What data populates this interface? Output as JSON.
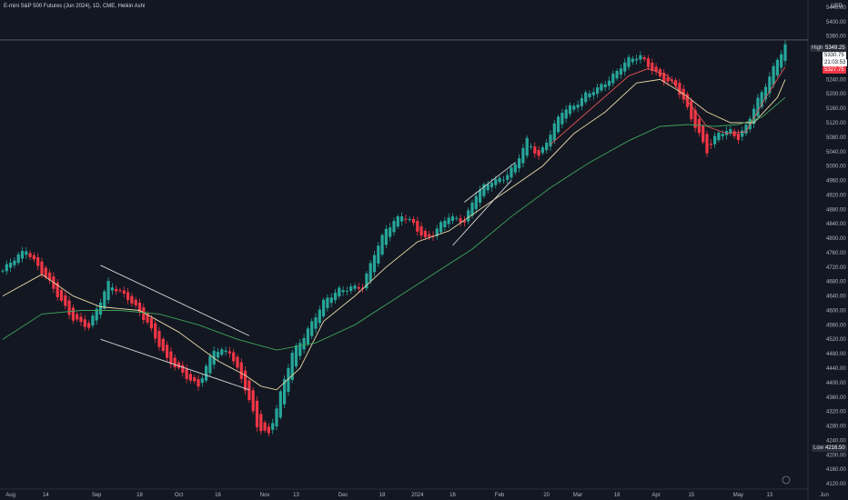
{
  "chart_title": "E-mini S&P 500 Futures (Jun 2024), 1D, CME, Heikin Ashi",
  "currency": "USD",
  "high_label": "High",
  "high_value": "5349.25",
  "low_label": "Low",
  "low_value": "4216.50",
  "last_price": "5330.75",
  "countdown": "21:03:53",
  "red_tag": "5327.75",
  "colors": {
    "background": "#131722",
    "up": "#26a69a",
    "down": "#f23645",
    "ma_fast": "#e05555",
    "ma_mid": "#e7d8a5",
    "ma_slow": "#3fa35b",
    "trendline": "#d8d8d8"
  },
  "chart_data": {
    "type": "candlestick",
    "title": "E-mini S&P 500 Futures (Jun 2024), 1D, CME, Heikin Ashi",
    "y_ticks": [
      5440,
      5400,
      5360,
      5320,
      5280,
      5240,
      5200,
      5160,
      5120,
      5080,
      5040,
      5000,
      4960,
      4920,
      4880,
      4840,
      4800,
      4760,
      4720,
      4680,
      4640,
      4600,
      4560,
      4520,
      4480,
      4440,
      4400,
      4360,
      4320,
      4280,
      4240,
      4200,
      4160,
      4120
    ],
    "ylim": [
      4105,
      5460
    ],
    "x_ticks": [
      {
        "label": "Aug",
        "index": 2
      },
      {
        "label": "14",
        "index": 11
      },
      {
        "label": "Sep",
        "index": 24
      },
      {
        "label": "18",
        "index": 35
      },
      {
        "label": "Oct",
        "index": 45
      },
      {
        "label": "16",
        "index": 55
      },
      {
        "label": "Nov",
        "index": 67
      },
      {
        "label": "13",
        "index": 75
      },
      {
        "label": "Dec",
        "index": 87
      },
      {
        "label": "18",
        "index": 97
      },
      {
        "label": "2024",
        "index": 106
      },
      {
        "label": "16",
        "index": 115
      },
      {
        "label": "Feb",
        "index": 127
      },
      {
        "label": "20",
        "index": 139
      },
      {
        "label": "Mar",
        "index": 147
      },
      {
        "label": "18",
        "index": 157
      },
      {
        "label": "Apr",
        "index": 167
      },
      {
        "label": "15",
        "index": 176
      },
      {
        "label": "May",
        "index": 188
      },
      {
        "label": "13",
        "index": 196
      },
      {
        "label": "Jun",
        "index": 210
      }
    ],
    "bars": 201,
    "anchors": [
      [
        0,
        4710
      ],
      [
        6,
        4770
      ],
      [
        8,
        4740
      ],
      [
        14,
        4640
      ],
      [
        18,
        4580
      ],
      [
        22,
        4550
      ],
      [
        27,
        4680
      ],
      [
        32,
        4630
      ],
      [
        37,
        4570
      ],
      [
        42,
        4460
      ],
      [
        47,
        4420
      ],
      [
        50,
        4390
      ],
      [
        54,
        4490
      ],
      [
        58,
        4490
      ],
      [
        62,
        4380
      ],
      [
        65,
        4280
      ],
      [
        68,
        4260
      ],
      [
        70,
        4330
      ],
      [
        74,
        4480
      ],
      [
        78,
        4550
      ],
      [
        82,
        4620
      ],
      [
        86,
        4660
      ],
      [
        89,
        4665
      ],
      [
        92,
        4660
      ],
      [
        95,
        4760
      ],
      [
        98,
        4830
      ],
      [
        102,
        4860
      ],
      [
        105,
        4840
      ],
      [
        108,
        4800
      ],
      [
        110,
        4810
      ],
      [
        114,
        4860
      ],
      [
        118,
        4850
      ],
      [
        121,
        4920
      ],
      [
        125,
        4960
      ],
      [
        128,
        4970
      ],
      [
        131,
        5000
      ],
      [
        134,
        5070
      ],
      [
        137,
        5030
      ],
      [
        140,
        5090
      ],
      [
        143,
        5150
      ],
      [
        146,
        5170
      ],
      [
        149,
        5200
      ],
      [
        152,
        5210
      ],
      [
        155,
        5240
      ],
      [
        158,
        5280
      ],
      [
        160,
        5295
      ],
      [
        163,
        5300
      ],
      [
        166,
        5270
      ],
      [
        169,
        5240
      ],
      [
        172,
        5220
      ],
      [
        175,
        5160
      ],
      [
        178,
        5090
      ],
      [
        180,
        5040
      ],
      [
        183,
        5090
      ],
      [
        186,
        5100
      ],
      [
        188,
        5080
      ],
      [
        190,
        5110
      ],
      [
        193,
        5180
      ],
      [
        196,
        5250
      ],
      [
        198,
        5300
      ],
      [
        200,
        5332
      ]
    ],
    "moving_averages": [
      {
        "color": "#e05555",
        "points": [
          [
            140,
            5060
          ],
          [
            160,
            5250
          ],
          [
            165,
            5270
          ],
          [
            170,
            5250
          ],
          [
            175,
            5180
          ],
          [
            180,
            5110
          ],
          [
            185,
            5090
          ],
          [
            190,
            5095
          ],
          [
            195,
            5190
          ],
          [
            200,
            5275
          ]
        ]
      },
      {
        "color": "#e7d8a5",
        "points": [
          [
            0,
            4640
          ],
          [
            10,
            4700
          ],
          [
            18,
            4640
          ],
          [
            25,
            4610
          ],
          [
            35,
            4600
          ],
          [
            45,
            4540
          ],
          [
            55,
            4460
          ],
          [
            62,
            4420
          ],
          [
            66,
            4390
          ],
          [
            70,
            4380
          ],
          [
            76,
            4440
          ],
          [
            82,
            4570
          ],
          [
            90,
            4640
          ],
          [
            98,
            4720
          ],
          [
            106,
            4790
          ],
          [
            114,
            4820
          ],
          [
            122,
            4880
          ],
          [
            130,
            4940
          ],
          [
            138,
            5000
          ],
          [
            146,
            5090
          ],
          [
            154,
            5150
          ],
          [
            162,
            5230
          ],
          [
            168,
            5240
          ],
          [
            174,
            5200
          ],
          [
            180,
            5150
          ],
          [
            186,
            5120
          ],
          [
            192,
            5120
          ],
          [
            198,
            5190
          ],
          [
            200,
            5240
          ]
        ]
      },
      {
        "color": "#3fa35b",
        "points": [
          [
            0,
            4520
          ],
          [
            10,
            4590
          ],
          [
            20,
            4600
          ],
          [
            30,
            4600
          ],
          [
            40,
            4590
          ],
          [
            50,
            4560
          ],
          [
            60,
            4520
          ],
          [
            70,
            4490
          ],
          [
            80,
            4510
          ],
          [
            90,
            4560
          ],
          [
            100,
            4630
          ],
          [
            110,
            4700
          ],
          [
            120,
            4770
          ],
          [
            130,
            4860
          ],
          [
            140,
            4940
          ],
          [
            150,
            5010
          ],
          [
            160,
            5070
          ],
          [
            168,
            5110
          ],
          [
            175,
            5115
          ],
          [
            182,
            5110
          ],
          [
            188,
            5115
          ],
          [
            194,
            5135
          ],
          [
            200,
            5190
          ]
        ]
      }
    ],
    "trendlines": [
      [
        [
          25,
          4725
        ],
        [
          63,
          4530
        ]
      ],
      [
        [
          25,
          4520
        ],
        [
          63,
          4380
        ]
      ],
      [
        [
          118,
          4900
        ],
        [
          131,
          5010
        ]
      ],
      [
        [
          115,
          4780
        ],
        [
          130,
          4960
        ]
      ]
    ]
  }
}
